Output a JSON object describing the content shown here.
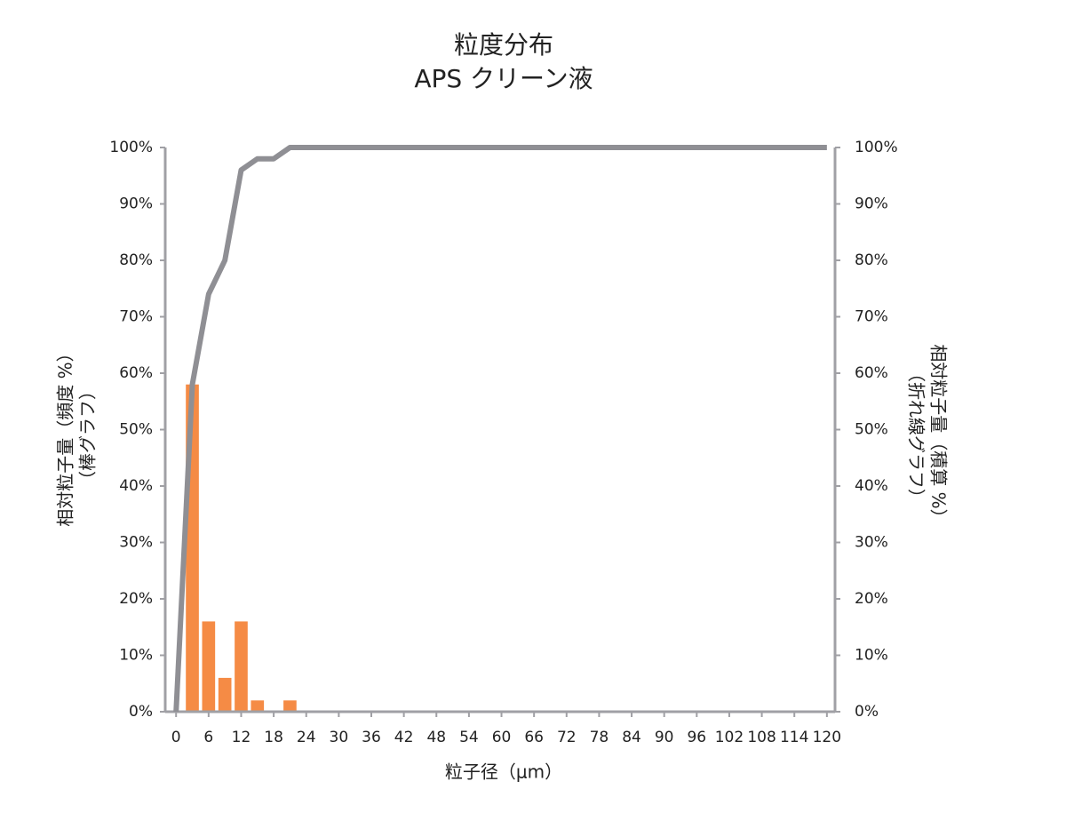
{
  "chart_data": {
    "type": "combo",
    "title": [
      "粒度分布",
      "APS クリーン液"
    ],
    "x_label": "粒子径（μm）",
    "y_label": [
      "相対粒子量（頻度 %）",
      "（棒グラフ）"
    ],
    "y2_label": [
      "相対粒子量（積算 %）",
      "（折れ線グラフ）"
    ],
    "xlim": [
      -2,
      121.5
    ],
    "xticks": [
      0,
      6,
      12,
      18,
      24,
      30,
      36,
      42,
      48,
      54,
      60,
      66,
      72,
      78,
      84,
      90,
      96,
      102,
      108,
      114,
      120
    ],
    "ylim": [
      0,
      100
    ],
    "yticks": [
      {
        "value": 0,
        "label": "0%"
      },
      {
        "value": 10,
        "label": "10%"
      },
      {
        "value": 20,
        "label": "20%"
      },
      {
        "value": 30,
        "label": "30%"
      },
      {
        "value": 40,
        "label": "40%"
      },
      {
        "value": 50,
        "label": "50%"
      },
      {
        "value": 60,
        "label": "60%"
      },
      {
        "value": 70,
        "label": "70%"
      },
      {
        "value": 80,
        "label": "80%"
      },
      {
        "value": 90,
        "label": "90%"
      },
      {
        "value": 100,
        "label": "100%"
      }
    ],
    "y2lim": [
      0,
      100
    ],
    "y2ticks": [
      {
        "value": 0,
        "label": "0%"
      },
      {
        "value": 10,
        "label": "10%"
      },
      {
        "value": 20,
        "label": "20%"
      },
      {
        "value": 30,
        "label": "30%"
      },
      {
        "value": 40,
        "label": "40%"
      },
      {
        "value": 50,
        "label": "50%"
      },
      {
        "value": 60,
        "label": "60%"
      },
      {
        "value": 70,
        "label": "70%"
      },
      {
        "value": 80,
        "label": "80%"
      },
      {
        "value": 90,
        "label": "90%"
      },
      {
        "value": 100,
        "label": "100%"
      }
    ],
    "series": [
      {
        "type": "bar",
        "color": "#f58b45",
        "x": [
          3,
          6,
          9,
          12,
          15,
          21
        ],
        "values": [
          58,
          16,
          6,
          16,
          2,
          2
        ]
      },
      {
        "type": "line",
        "axis": "y2",
        "color": "#8f8f94",
        "x": [
          0,
          3,
          6,
          9,
          12,
          15,
          18,
          21,
          120
        ],
        "values": [
          0,
          58,
          74,
          80,
          96,
          98,
          98,
          100,
          100
        ]
      }
    ]
  }
}
